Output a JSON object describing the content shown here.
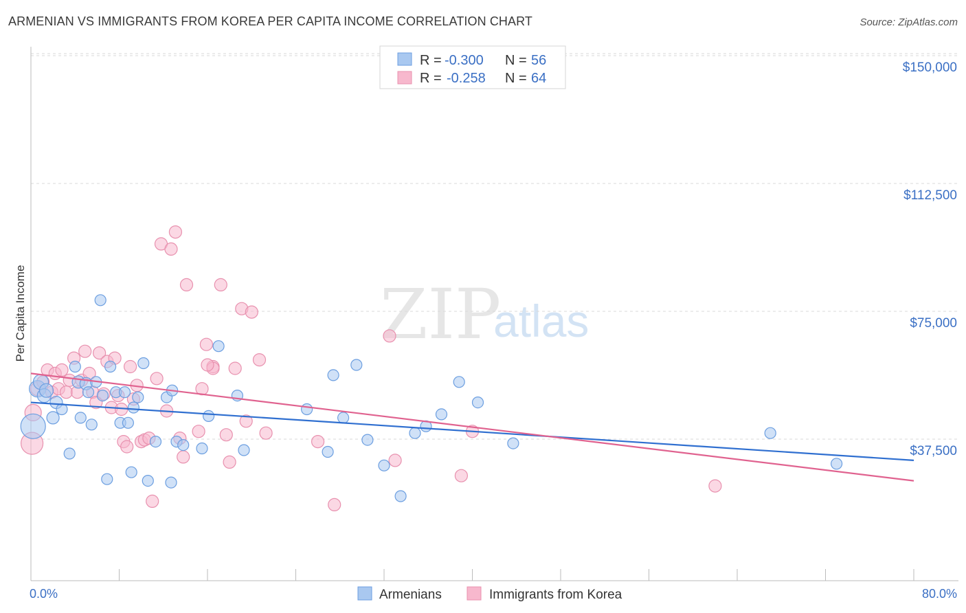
{
  "title": "ARMENIAN VS IMMIGRANTS FROM KOREA PER CAPITA INCOME CORRELATION CHART",
  "source": "Source: ZipAtlas.com",
  "watermark": {
    "zip": "ZIP",
    "atlas": "atlas"
  },
  "colors": {
    "armenians_fill": "#a9c8f0",
    "armenians_stroke": "#6b9ee0",
    "armenians_line": "#2f6fd0",
    "korea_fill": "#f7b8cd",
    "korea_stroke": "#e890ae",
    "korea_line": "#e0628f",
    "axis_text": "#3a6fc4",
    "grid": "#d9d9d9"
  },
  "legend": {
    "rows": [
      {
        "r_label": "R =",
        "r_value": "-0.300",
        "n_label": "N =",
        "n_value": "56"
      },
      {
        "r_label": "R =",
        "r_value": "-0.258",
        "n_label": "N =",
        "n_value": "64"
      }
    ]
  },
  "chart_data": {
    "type": "scatter",
    "title": "ARMENIAN VS IMMIGRANTS FROM KOREA PER CAPITA INCOME CORRELATION CHART",
    "xlabel": "",
    "ylabel": "Per Capita Income",
    "xlim": [
      0,
      80
    ],
    "ylim": [
      0,
      150000
    ],
    "x_tick_labels": [
      "0.0%",
      "80.0%"
    ],
    "y_ticks": [
      37500,
      75000,
      112500,
      150000
    ],
    "y_tick_labels": [
      "$37,500",
      "$75,000",
      "$112,500",
      "$150,000"
    ],
    "grid": "horizontal dashed",
    "legend_position": "top-center",
    "series": [
      {
        "name": "Armenians",
        "r": -0.3,
        "n": 56,
        "trend": {
          "x": [
            0,
            80
          ],
          "y": [
            51500,
            34500
          ]
        },
        "points": [
          [
            0.2,
            44500,
            18
          ],
          [
            0.6,
            55500,
            12
          ],
          [
            0.9,
            57500,
            11
          ],
          [
            1.2,
            53500,
            10
          ],
          [
            1.4,
            55000,
            10
          ],
          [
            2.0,
            47000,
            9
          ],
          [
            2.3,
            51500,
            9
          ],
          [
            2.8,
            49500,
            8
          ],
          [
            3.5,
            36500,
            8
          ],
          [
            4.0,
            62000,
            8
          ],
          [
            4.3,
            57500,
            9
          ],
          [
            4.5,
            47000,
            8
          ],
          [
            5.0,
            57000,
            9
          ],
          [
            5.2,
            54500,
            8
          ],
          [
            5.5,
            45000,
            8
          ],
          [
            5.9,
            57500,
            8
          ],
          [
            6.3,
            81500,
            8
          ],
          [
            6.5,
            53500,
            8
          ],
          [
            6.9,
            29000,
            8
          ],
          [
            7.2,
            62000,
            8
          ],
          [
            7.7,
            54500,
            8
          ],
          [
            8.1,
            45500,
            8
          ],
          [
            8.5,
            54500,
            8
          ],
          [
            8.8,
            45500,
            8
          ],
          [
            9.1,
            31000,
            8
          ],
          [
            9.3,
            50000,
            8
          ],
          [
            9.7,
            53000,
            8
          ],
          [
            10.2,
            63000,
            8
          ],
          [
            10.6,
            28500,
            8
          ],
          [
            11.3,
            40000,
            8
          ],
          [
            12.3,
            53000,
            8
          ],
          [
            12.8,
            55000,
            8
          ],
          [
            13.2,
            40000,
            8
          ],
          [
            13.8,
            39000,
            8
          ],
          [
            15.5,
            38000,
            8
          ],
          [
            16.1,
            47500,
            8
          ],
          [
            17.0,
            68000,
            8
          ],
          [
            18.7,
            53500,
            8
          ],
          [
            19.3,
            37500,
            8
          ],
          [
            12.7,
            28000,
            8
          ],
          [
            25.0,
            49500,
            8
          ],
          [
            27.4,
            59500,
            8
          ],
          [
            28.3,
            47000,
            8
          ],
          [
            26.9,
            37000,
            8
          ],
          [
            29.5,
            62500,
            8
          ],
          [
            30.5,
            40500,
            8
          ],
          [
            32.0,
            33000,
            8
          ],
          [
            33.5,
            24000,
            8
          ],
          [
            34.8,
            42500,
            8
          ],
          [
            35.8,
            44500,
            8
          ],
          [
            37.2,
            48000,
            8
          ],
          [
            38.8,
            57500,
            8
          ],
          [
            40.5,
            51500,
            8
          ],
          [
            43.7,
            39500,
            8
          ],
          [
            67.0,
            42500,
            8
          ],
          [
            73.0,
            33500,
            8
          ]
        ]
      },
      {
        "name": "Immigrants from Korea",
        "r": -0.258,
        "n": 64,
        "trend": {
          "x": [
            0,
            80
          ],
          "y": [
            60000,
            28500
          ]
        },
        "points": [
          [
            0.1,
            39500,
            16
          ],
          [
            0.2,
            48500,
            12
          ],
          [
            0.6,
            55500,
            10
          ],
          [
            1.1,
            57500,
            9
          ],
          [
            1.5,
            61000,
            9
          ],
          [
            1.9,
            54500,
            9
          ],
          [
            2.2,
            60000,
            9
          ],
          [
            2.5,
            55500,
            9
          ],
          [
            2.8,
            61000,
            9
          ],
          [
            3.2,
            54500,
            9
          ],
          [
            3.5,
            58000,
            9
          ],
          [
            3.9,
            64500,
            9
          ],
          [
            4.2,
            54500,
            9
          ],
          [
            4.6,
            58000,
            9
          ],
          [
            4.9,
            66500,
            9
          ],
          [
            5.3,
            60000,
            9
          ],
          [
            5.6,
            54500,
            9
          ],
          [
            5.9,
            51500,
            9
          ],
          [
            6.2,
            66000,
            9
          ],
          [
            6.6,
            54000,
            9
          ],
          [
            6.9,
            63500,
            9
          ],
          [
            7.3,
            50000,
            9
          ],
          [
            7.6,
            64500,
            9
          ],
          [
            7.9,
            53500,
            9
          ],
          [
            8.2,
            49500,
            9
          ],
          [
            8.4,
            40000,
            9
          ],
          [
            8.7,
            38500,
            9
          ],
          [
            9.0,
            62000,
            9
          ],
          [
            9.3,
            52500,
            9
          ],
          [
            9.6,
            56500,
            9
          ],
          [
            10.0,
            40000,
            9
          ],
          [
            10.3,
            40500,
            9
          ],
          [
            10.7,
            41000,
            9
          ],
          [
            11.0,
            22500,
            9
          ],
          [
            11.4,
            58500,
            9
          ],
          [
            11.8,
            98000,
            9
          ],
          [
            12.3,
            49000,
            9
          ],
          [
            12.7,
            96500,
            9
          ],
          [
            13.1,
            101500,
            9
          ],
          [
            13.5,
            41000,
            9
          ],
          [
            13.8,
            35500,
            9
          ],
          [
            14.1,
            86000,
            9
          ],
          [
            15.2,
            43000,
            9
          ],
          [
            15.5,
            55500,
            9
          ],
          [
            15.9,
            68500,
            9
          ],
          [
            16.5,
            62000,
            9
          ],
          [
            17.2,
            86000,
            9
          ],
          [
            17.7,
            42000,
            9
          ],
          [
            18.0,
            34000,
            9
          ],
          [
            18.5,
            61500,
            9
          ],
          [
            19.1,
            79000,
            9
          ],
          [
            19.5,
            46000,
            9
          ],
          [
            20.0,
            78000,
            9
          ],
          [
            20.7,
            64000,
            9
          ],
          [
            21.3,
            42500,
            9
          ],
          [
            16.5,
            61500,
            9
          ],
          [
            26.0,
            40000,
            9
          ],
          [
            27.5,
            21500,
            9
          ],
          [
            32.5,
            71000,
            9
          ],
          [
            33.0,
            34500,
            9
          ],
          [
            39.0,
            30000,
            9
          ],
          [
            40.0,
            43000,
            9
          ],
          [
            62.0,
            27000,
            9
          ],
          [
            16.0,
            62500,
            9
          ]
        ]
      }
    ]
  },
  "bottom_legend": {
    "items": [
      "Armenians",
      "Immigrants from Korea"
    ]
  }
}
